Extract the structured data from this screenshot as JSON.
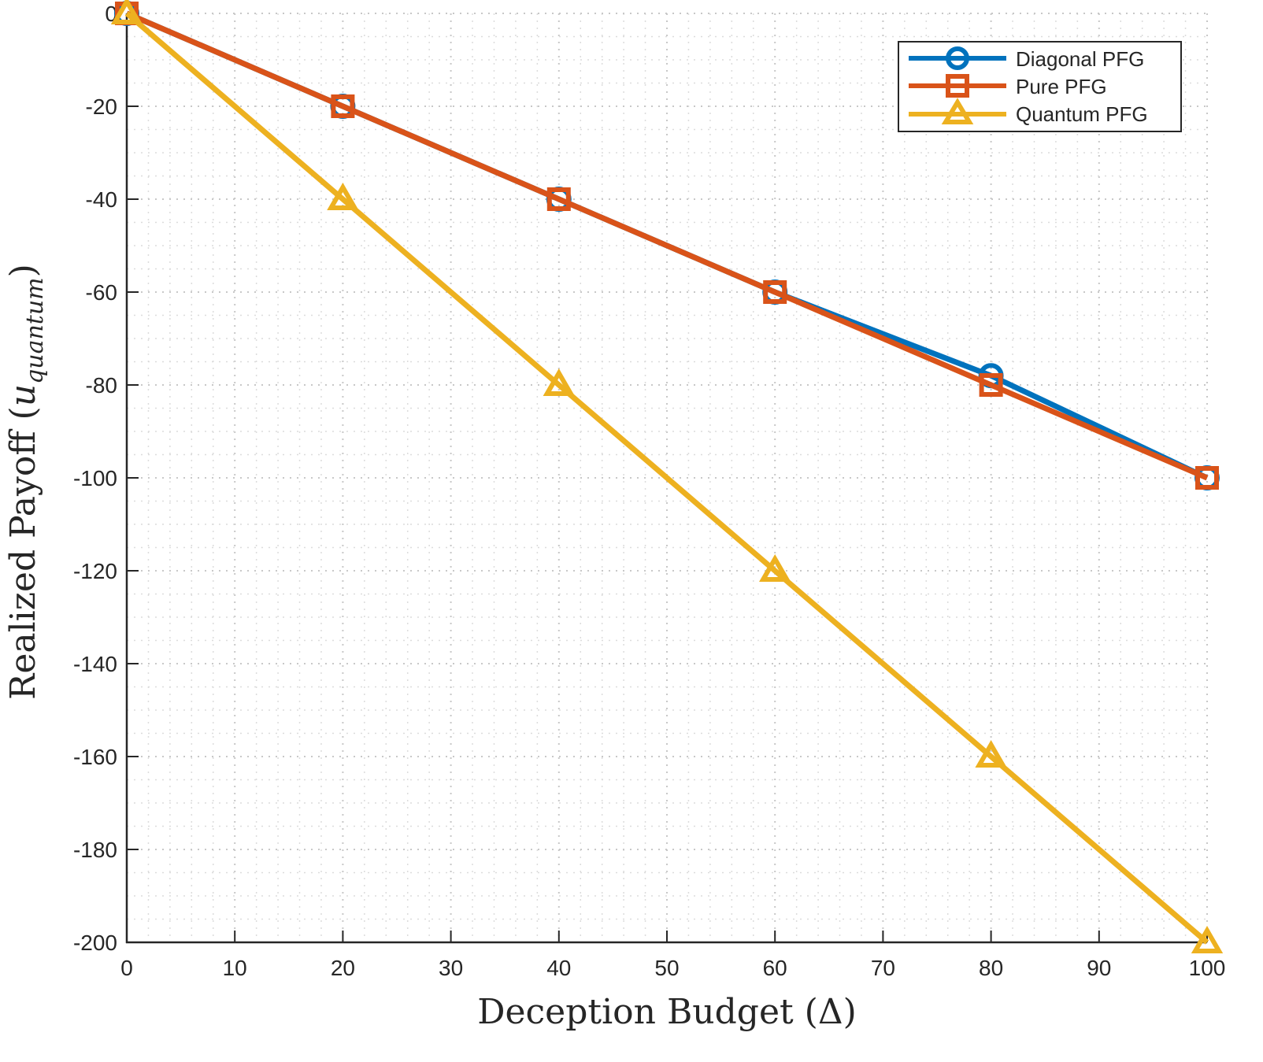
{
  "chart_data": {
    "type": "line",
    "title": "",
    "xlabel": "Deception Budget (Δ)",
    "ylabel_main": "Realized Payoff (",
    "ylabel_var": "u",
    "ylabel_sub": "quantum",
    "ylabel_close": ")",
    "xlim": [
      0,
      100
    ],
    "ylim": [
      -200,
      0
    ],
    "xticks": [
      0,
      10,
      20,
      30,
      40,
      50,
      60,
      70,
      80,
      90,
      100
    ],
    "xtick_labels": [
      "0",
      "10",
      "20",
      "30",
      "40",
      "50",
      "60",
      "70",
      "80",
      "90",
      "100"
    ],
    "yticks": [
      0,
      -20,
      -40,
      -60,
      -80,
      -100,
      -120,
      -140,
      -160,
      -180,
      -200
    ],
    "ytick_labels": [
      "0",
      "-20",
      "-40",
      "-60",
      "-80",
      "-100",
      "-120",
      "-140",
      "-160",
      "-180",
      "-200"
    ],
    "grid": "on (major and minor, dotted)",
    "legend_position": "top-right",
    "x": [
      0,
      20,
      40,
      60,
      80,
      100
    ],
    "series": [
      {
        "name": "Diagonal PFG",
        "color": "#0072BD",
        "marker": "circle",
        "values": [
          0,
          -20,
          -40,
          -60,
          -78,
          -100
        ]
      },
      {
        "name": "Pure PFG",
        "color": "#D95319",
        "marker": "square",
        "values": [
          0,
          -20,
          -40,
          -60,
          -80,
          -100
        ]
      },
      {
        "name": "Quantum PFG",
        "color": "#EDB120",
        "marker": "triangle",
        "values": [
          0,
          -40,
          -80,
          -120,
          -160,
          -200
        ]
      }
    ]
  }
}
